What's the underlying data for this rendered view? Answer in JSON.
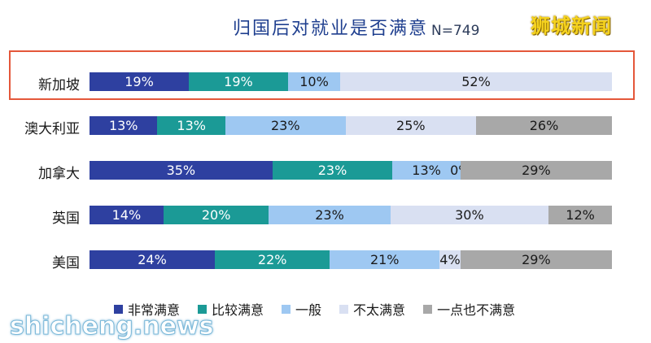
{
  "title": "归国后对就业是否满意",
  "n_label": "N=749",
  "watermark_top": "狮城新闻",
  "watermark_bottom": "shicheng.news",
  "highlight_color": "#e4573a",
  "colors": [
    "#2e40a0",
    "#1b9a96",
    "#9ec8f2",
    "#d9e0f2",
    "#a8a8a8"
  ],
  "text_colors": [
    "#ffffff",
    "#ffffff",
    "#1a1a1a",
    "#1a1a1a",
    "#1a1a1a"
  ],
  "chart_data": {
    "type": "bar",
    "orientation": "horizontal",
    "stacked": true,
    "percent": true,
    "title": "归国后对就业是否满意",
    "categories": [
      "新加坡",
      "澳大利亚",
      "加拿大",
      "英国",
      "美国"
    ],
    "series": [
      {
        "name": "非常满意",
        "values": [
          19,
          13,
          35,
          14,
          24
        ]
      },
      {
        "name": "比较满意",
        "values": [
          19,
          13,
          23,
          20,
          22
        ]
      },
      {
        "name": "一般",
        "values": [
          10,
          23,
          13,
          23,
          21
        ]
      },
      {
        "name": "不太满意",
        "values": [
          52,
          25,
          0,
          30,
          4
        ]
      },
      {
        "name": "一点也不满意",
        "values": [
          0,
          26,
          29,
          12,
          29
        ]
      }
    ],
    "labels": [
      [
        "19%",
        "19%",
        "10%",
        "52%",
        ""
      ],
      [
        "13%",
        "13%",
        "23%",
        "25%",
        "26%"
      ],
      [
        "35%",
        "23%",
        "13%",
        "0%",
        "29%"
      ],
      [
        "14%",
        "20%",
        "23%",
        "30%",
        "12%"
      ],
      [
        "24%",
        "22%",
        "21%",
        "4%",
        "29%"
      ]
    ],
    "legend_position": "bottom",
    "highlighted_category": "新加坡"
  }
}
